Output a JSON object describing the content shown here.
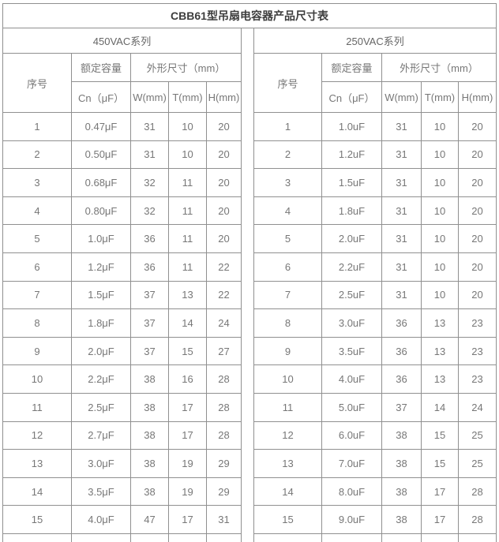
{
  "title": "CBB61型吊扇电容器产品尺寸表",
  "colors": {
    "border": "#909090",
    "text": "#777777",
    "title_text": "#3d3d3d",
    "series_text": "#666666",
    "background": "#ffffff"
  },
  "tables": [
    {
      "series_label": "450VAC系列",
      "headers": {
        "index": "序号",
        "capacity_group": "额定容量",
        "capacity_unit": "Cn（μF）",
        "dims_group": "外形尺寸（mm）",
        "w": "W(mm)",
        "t": "T(mm)",
        "h": "H(mm)"
      },
      "rows": [
        [
          "1",
          "0.47μF",
          "31",
          "10",
          "20"
        ],
        [
          "2",
          "0.50μF",
          "31",
          "10",
          "20"
        ],
        [
          "3",
          "0.68μF",
          "32",
          "11",
          "20"
        ],
        [
          "4",
          "0.80μF",
          "32",
          "11",
          "20"
        ],
        [
          "5",
          "1.0μF",
          "36",
          "11",
          "20"
        ],
        [
          "6",
          "1.2μF",
          "36",
          "11",
          "22"
        ],
        [
          "7",
          "1.5μF",
          "37",
          "13",
          "22"
        ],
        [
          "8",
          "1.8μF",
          "37",
          "14",
          "24"
        ],
        [
          "9",
          "2.0μF",
          "37",
          "15",
          "27"
        ],
        [
          "10",
          "2.2μF",
          "38",
          "16",
          "28"
        ],
        [
          "11",
          "2.5μF",
          "38",
          "17",
          "28"
        ],
        [
          "12",
          "2.7μF",
          "38",
          "17",
          "28"
        ],
        [
          "13",
          "3.0μF",
          "38",
          "19",
          "29"
        ],
        [
          "14",
          "3.5μF",
          "38",
          "19",
          "29"
        ],
        [
          "15",
          "4.0μF",
          "47",
          "17",
          "31"
        ]
      ]
    },
    {
      "series_label": "250VAC系列",
      "headers": {
        "index": "序号",
        "capacity_group": "额定容量",
        "capacity_unit": "Cn（μF）",
        "dims_group": "外形尺寸（mm）",
        "w": "W(mm)",
        "t": "T(mm)",
        "h": "H(mm)"
      },
      "rows": [
        [
          "1",
          "1.0uF",
          "31",
          "10",
          "20"
        ],
        [
          "2",
          "1.2uF",
          "31",
          "10",
          "20"
        ],
        [
          "3",
          "1.5uF",
          "31",
          "10",
          "20"
        ],
        [
          "4",
          "1.8uF",
          "31",
          "10",
          "20"
        ],
        [
          "5",
          "2.0uF",
          "31",
          "10",
          "20"
        ],
        [
          "6",
          "2.2uF",
          "31",
          "10",
          "20"
        ],
        [
          "7",
          "2.5uF",
          "31",
          "10",
          "20"
        ],
        [
          "8",
          "3.0uF",
          "36",
          "13",
          "23"
        ],
        [
          "9",
          "3.5uF",
          "36",
          "13",
          "23"
        ],
        [
          "10",
          "4.0uF",
          "36",
          "13",
          "23"
        ],
        [
          "11",
          "5.0uF",
          "37",
          "14",
          "24"
        ],
        [
          "12",
          "6.0uF",
          "38",
          "15",
          "25"
        ],
        [
          "13",
          "7.0uF",
          "38",
          "15",
          "25"
        ],
        [
          "14",
          "8.0uF",
          "38",
          "17",
          "28"
        ],
        [
          "15",
          "9.0uF",
          "38",
          "17",
          "28"
        ]
      ]
    }
  ]
}
